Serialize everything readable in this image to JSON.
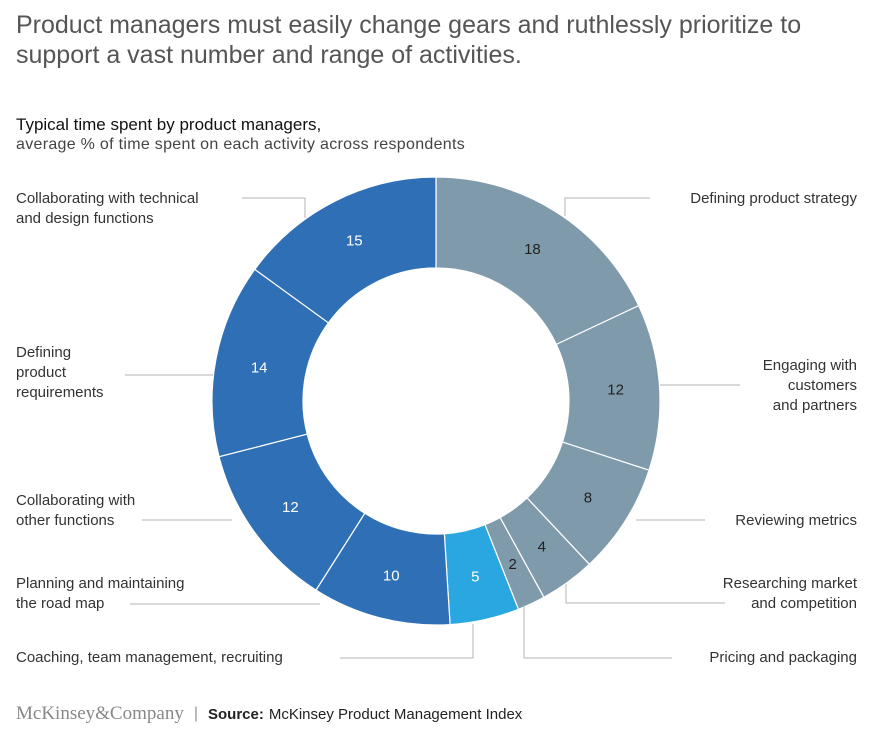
{
  "headline": "Product managers must easily change gears and ruthlessly prioritize to support a vast number and range of activities.",
  "brand": "McKinsey&Company",
  "source": {
    "label": "Source:",
    "text": "McKinsey Product Management Index"
  },
  "colors": {
    "dark_blue": "#2e6fb5",
    "gray_blue": "#7f9aaa",
    "bright_blue": "#2aa7e0",
    "leader": "#b3b3b3"
  },
  "chart_data": {
    "type": "pie",
    "title": "Typical time spent by product managers,",
    "subtitle": "average % of time spent on each activity across respondents",
    "donut": true,
    "slices": [
      {
        "label": "Defining product strategy",
        "value": 18,
        "color": "#7f9aaa"
      },
      {
        "label": "Engaging with customers and partners",
        "value": 12,
        "color": "#7f9aaa"
      },
      {
        "label": "Reviewing metrics",
        "value": 8,
        "color": "#7f9aaa"
      },
      {
        "label": "Researching market and competition",
        "value": 4,
        "color": "#7f9aaa"
      },
      {
        "label": "Pricing and packaging",
        "value": 2,
        "color": "#7f9aaa"
      },
      {
        "label": "Coaching, team management, recruiting",
        "value": 5,
        "color": "#2aa7e0"
      },
      {
        "label": "Planning and maintaining the road map",
        "value": 10,
        "color": "#2e6fb5"
      },
      {
        "label": "Collaborating with other functions",
        "value": 12,
        "color": "#2e6fb5"
      },
      {
        "label": "Defining product requirements",
        "value": 14,
        "color": "#2e6fb5"
      },
      {
        "label": "Collaborating with technical and design functions",
        "value": 15,
        "color": "#2e6fb5"
      }
    ]
  }
}
